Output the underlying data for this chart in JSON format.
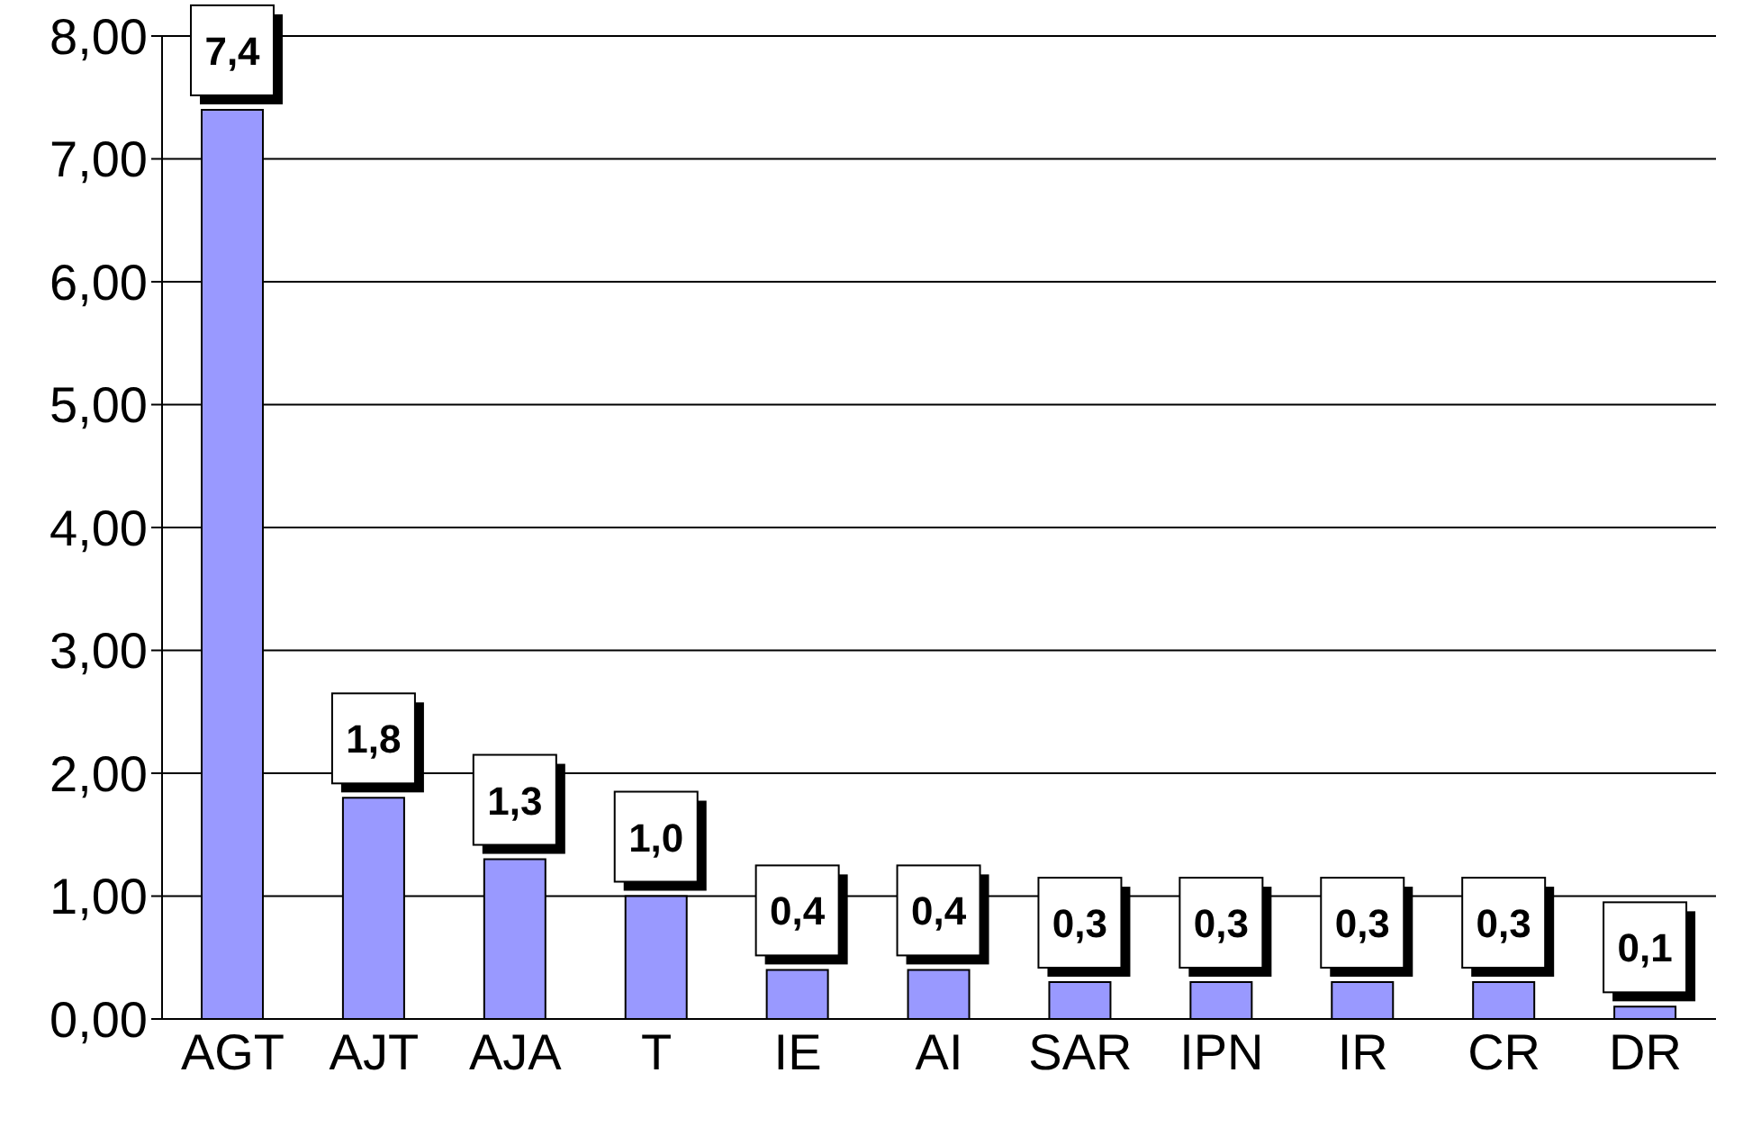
{
  "chart_data": {
    "type": "bar",
    "categories": [
      "AGT",
      "AJT",
      "AJA",
      "T",
      "IE",
      "AI",
      "SAR",
      "IPN",
      "IR",
      "CR",
      "DR"
    ],
    "values": [
      7.4,
      1.8,
      1.3,
      1.0,
      0.4,
      0.4,
      0.3,
      0.3,
      0.3,
      0.3,
      0.1
    ],
    "value_labels": [
      "7,4",
      "1,8",
      "1,3",
      "1,0",
      "0,4",
      "0,4",
      "0,3",
      "0,3",
      "0,3",
      "0,3",
      "0,1"
    ],
    "color": "#9999ff",
    "ylim": [
      0,
      8
    ],
    "yticks": [
      {
        "value": 0,
        "label": "0,00"
      },
      {
        "value": 1,
        "label": "1,00"
      },
      {
        "value": 2,
        "label": "2,00"
      },
      {
        "value": 3,
        "label": "3,00"
      },
      {
        "value": 4,
        "label": "4,00"
      },
      {
        "value": 5,
        "label": "5,00"
      },
      {
        "value": 6,
        "label": "6,00"
      },
      {
        "value": 7,
        "label": "7,00"
      },
      {
        "value": 8,
        "label": "8,00"
      }
    ],
    "grid": "y"
  }
}
